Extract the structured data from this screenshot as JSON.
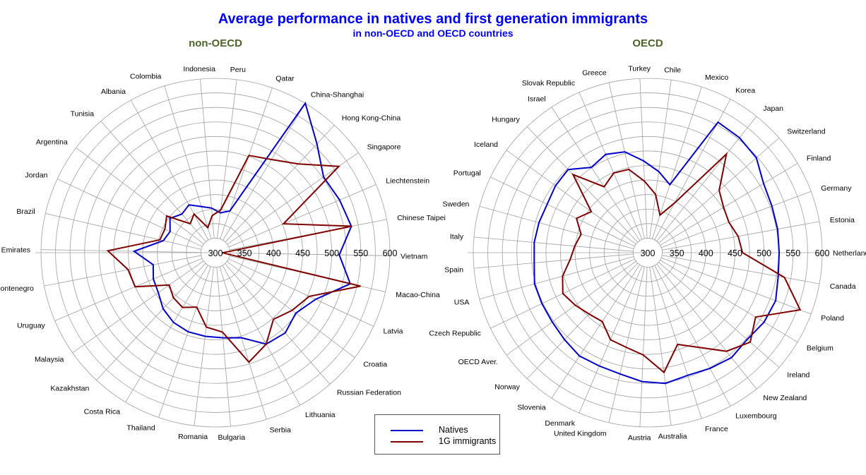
{
  "title": "Average performance in natives and first generation immigrants",
  "subtitle": "in non-OECD and OECD countries",
  "legend": {
    "natives": "Natives",
    "immigrants": "1G immigrants"
  },
  "colors": {
    "natives": "#0000cc",
    "immigrants": "#800000",
    "title": "#0000ff",
    "panel_title": "#4f6228"
  },
  "chart_data": [
    {
      "type": "radar",
      "title": "non-OECD",
      "rlim": [
        300,
        600
      ],
      "tick_labels": [
        "300",
        "350",
        "400",
        "450",
        "500",
        "550",
        "600"
      ],
      "grid": true,
      "legend_position": "bottom-center",
      "categories": [
        "Vietnam",
        "Chinese Taipei",
        "Liechtenstein",
        "Singapore",
        "Hong Kong-China",
        "China-Shanghai",
        "Qatar",
        "Peru",
        "Indonesia",
        "Colombia",
        "Albania",
        "Tunisia",
        "Argentina",
        "Jordan",
        "Brazil",
        "United Arab Emirates",
        "Montenegro",
        "Uruguay",
        "Malaysia",
        "Kazakhstan",
        "Costa Rica",
        "Thailand",
        "Romania",
        "Bulgaria",
        "Serbia",
        "Lithuania",
        "Russian Federation",
        "Croatia",
        "Latvia",
        "Macao-China"
      ],
      "series": [
        {
          "name": "Natives",
          "values": [
            513,
            538,
            532,
            527,
            556,
            614,
            376,
            369,
            377,
            383,
            394,
            388,
            398,
            386,
            392,
            440,
            409,
            416,
            420,
            432,
            440,
            444,
            445,
            447,
            453,
            480,
            483,
            473,
            490,
            538
          ]
        },
        {
          "name": "1G immigrants",
          "values": [
            312,
            539,
            427,
            559,
            509,
            487,
            477,
            374,
            364,
            345,
            376,
            366,
            405,
            396,
            398,
            485,
            453,
            450,
            397,
            406,
            410,
            399,
            429,
            437,
            497,
            480,
            452,
            465,
            478,
            556
          ]
        }
      ]
    },
    {
      "type": "radar",
      "title": "OECD",
      "rlim": [
        300,
        600
      ],
      "tick_labels": [
        "300",
        "350",
        "400",
        "450",
        "500",
        "550",
        "600"
      ],
      "grid": true,
      "legend_position": "bottom-center",
      "categories": [
        "Netherlands",
        "Estonia",
        "Germany",
        "Finland",
        "Switzerland",
        "Japan",
        "Korea",
        "Mexico",
        "Chile",
        "Turkey",
        "Greece",
        "Slovak Republic",
        "Israel",
        "Hungary",
        "Iceland",
        "Portugal",
        "Sweden",
        "Italy",
        "Spain",
        "USA",
        "Czech Republic",
        "OECD Aver.",
        "Norway",
        "Slovenia",
        "Denmark",
        "United Kingdom",
        "Austria",
        "Australia",
        "France",
        "Luxembourg",
        "New Zealand",
        "Ireland",
        "Belgium",
        "Poland",
        "Canada"
      ],
      "series": [
        {
          "name": "Natives",
          "values": [
            526,
            527,
            528,
            532,
            548,
            553,
            555,
            423,
            441,
            458,
            478,
            484,
            476,
            498,
            496,
            492,
            494,
            496,
            496,
            502,
            502,
            503,
            507,
            513,
            512,
            514,
            522,
            527,
            522,
            526,
            531,
            527,
            533,
            535,
            528
          ]
        },
        {
          "name": "1G immigrants",
          "values": [
            463,
            458,
            449,
            452,
            463,
            517,
            397,
            368,
            401,
            423,
            447,
            449,
            436,
            486,
            420,
            436,
            419,
            426,
            434,
            452,
            462,
            454,
            446,
            442,
            463,
            467,
            476,
            508,
            466,
            485,
            517,
            534,
            516,
            580,
            539
          ]
        }
      ]
    }
  ]
}
